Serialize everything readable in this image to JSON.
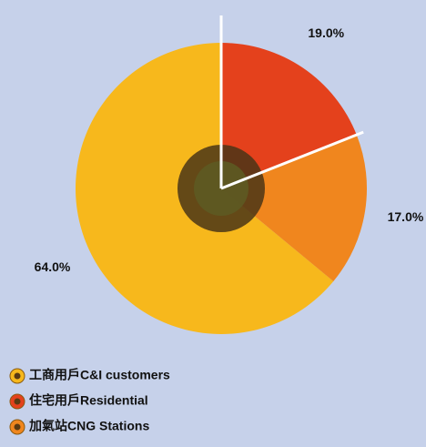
{
  "chart_data": {
    "type": "pie",
    "categories": [
      "工商用戶C&I customers",
      "住宅用戶Residential",
      "加氣站CNG Stations"
    ],
    "values": [
      64.0,
      19.0,
      17.0
    ],
    "value_labels": [
      "64.0%",
      "19.0%",
      "17.0%"
    ],
    "colors": [
      "#f7b81c",
      "#e4411c",
      "#f0861e"
    ]
  }
}
